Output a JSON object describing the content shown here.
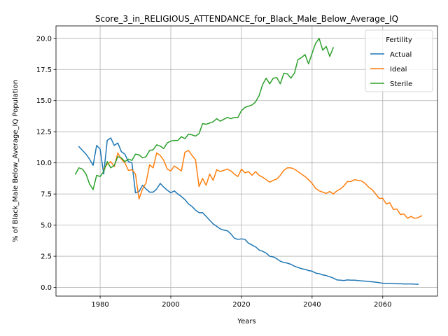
{
  "chart_data": {
    "type": "line",
    "title": "Score_3_in_RELIGIOUS_ATTENDANCE_for_Black_Male_Below_Average_IQ",
    "xlabel": "Years",
    "ylabel": "% of Black_Male Below_Average_IQ Population",
    "xlim": [
      1967.5,
      2075.5
    ],
    "ylim": [
      -0.7,
      21.0
    ],
    "xticks": [
      1980,
      2000,
      2020,
      2040,
      2060
    ],
    "yticks": [
      0.0,
      2.5,
      5.0,
      7.5,
      10.0,
      12.5,
      15.0,
      17.5,
      20.0
    ],
    "xtick_labels": [
      "1980",
      "2000",
      "2020",
      "2040",
      "2060"
    ],
    "ytick_labels": [
      "0.0",
      "2.5",
      "5.0",
      "7.5",
      "10.0",
      "12.5",
      "15.0",
      "17.5",
      "20.0"
    ],
    "grid": true,
    "legend": {
      "title": "Fertility",
      "placement": "top-right"
    },
    "series": [
      {
        "name": "Actual",
        "color": "#1f77b4",
        "points": [
          [
            1974,
            11.3
          ],
          [
            1975,
            11.0
          ],
          [
            1976,
            10.7
          ],
          [
            1977,
            10.3
          ],
          [
            1978,
            9.8
          ],
          [
            1979,
            11.4
          ],
          [
            1980,
            11.1
          ],
          [
            1981,
            9.1
          ],
          [
            1982,
            11.8
          ],
          [
            1983,
            12.0
          ],
          [
            1984,
            11.4
          ],
          [
            1985,
            11.6
          ],
          [
            1986,
            10.9
          ],
          [
            1987,
            10.7
          ],
          [
            1988,
            10.1
          ],
          [
            1989,
            10.0
          ],
          [
            1990,
            7.6
          ],
          [
            1991,
            7.7
          ],
          [
            1992,
            8.2
          ],
          [
            1993,
            7.9
          ],
          [
            1994,
            7.65
          ],
          [
            1995,
            7.65
          ],
          [
            1996,
            7.9
          ],
          [
            1997,
            8.35
          ],
          [
            1998,
            8.05
          ],
          [
            1999,
            7.8
          ],
          [
            2000,
            7.6
          ],
          [
            2001,
            7.75
          ],
          [
            2002,
            7.5
          ],
          [
            2003,
            7.3
          ],
          [
            2004,
            7.05
          ],
          [
            2005,
            6.7
          ],
          [
            2006,
            6.5
          ],
          [
            2007,
            6.2
          ],
          [
            2008,
            6.0
          ],
          [
            2009,
            6.0
          ],
          [
            2010,
            5.7
          ],
          [
            2011,
            5.4
          ],
          [
            2012,
            5.1
          ],
          [
            2013,
            4.9
          ],
          [
            2014,
            4.7
          ],
          [
            2015,
            4.6
          ],
          [
            2016,
            4.55
          ],
          [
            2017,
            4.3
          ],
          [
            2018,
            3.95
          ],
          [
            2019,
            3.85
          ],
          [
            2020,
            3.9
          ],
          [
            2021,
            3.85
          ],
          [
            2022,
            3.55
          ],
          [
            2023,
            3.4
          ],
          [
            2024,
            3.25
          ],
          [
            2025,
            3.0
          ],
          [
            2026,
            2.9
          ],
          [
            2027,
            2.75
          ],
          [
            2028,
            2.5
          ],
          [
            2029,
            2.45
          ],
          [
            2030,
            2.3
          ],
          [
            2031,
            2.1
          ],
          [
            2032,
            2.0
          ],
          [
            2033,
            1.95
          ],
          [
            2034,
            1.85
          ],
          [
            2035,
            1.7
          ],
          [
            2036,
            1.6
          ],
          [
            2037,
            1.5
          ],
          [
            2038,
            1.45
          ],
          [
            2039,
            1.35
          ],
          [
            2040,
            1.3
          ],
          [
            2041,
            1.15
          ],
          [
            2042,
            1.1
          ],
          [
            2043,
            1.0
          ],
          [
            2044,
            0.95
          ],
          [
            2045,
            0.85
          ],
          [
            2046,
            0.75
          ],
          [
            2047,
            0.6
          ],
          [
            2048,
            0.58
          ],
          [
            2049,
            0.55
          ],
          [
            2050,
            0.6
          ],
          [
            2051,
            0.58
          ],
          [
            2052,
            0.58
          ],
          [
            2053,
            0.55
          ],
          [
            2054,
            0.52
          ],
          [
            2055,
            0.5
          ],
          [
            2056,
            0.47
          ],
          [
            2057,
            0.45
          ],
          [
            2058,
            0.42
          ],
          [
            2059,
            0.38
          ],
          [
            2060,
            0.33
          ],
          [
            2061,
            0.32
          ],
          [
            2062,
            0.31
          ],
          [
            2063,
            0.3
          ],
          [
            2064,
            0.29
          ],
          [
            2065,
            0.29
          ],
          [
            2066,
            0.28
          ],
          [
            2067,
            0.28
          ],
          [
            2068,
            0.28
          ],
          [
            2069,
            0.26
          ],
          [
            2070,
            0.25
          ]
        ]
      },
      {
        "name": "Ideal",
        "color": "#ff7f0e",
        "points": [
          [
            1981,
            9.5
          ],
          [
            1982,
            9.9
          ],
          [
            1983,
            10.1
          ],
          [
            1984,
            9.7
          ],
          [
            1985,
            10.8
          ],
          [
            1986,
            10.3
          ],
          [
            1987,
            10.0
          ],
          [
            1988,
            9.4
          ],
          [
            1989,
            9.45
          ],
          [
            1990,
            9.1
          ],
          [
            1991,
            7.1
          ],
          [
            1992,
            7.9
          ],
          [
            1993,
            8.4
          ],
          [
            1994,
            9.85
          ],
          [
            1995,
            9.6
          ],
          [
            1996,
            10.8
          ],
          [
            1997,
            10.6
          ],
          [
            1998,
            10.2
          ],
          [
            1999,
            9.5
          ],
          [
            2000,
            9.35
          ],
          [
            2001,
            9.75
          ],
          [
            2002,
            9.55
          ],
          [
            2003,
            9.35
          ],
          [
            2004,
            10.85
          ],
          [
            2005,
            11.0
          ],
          [
            2006,
            10.6
          ],
          [
            2007,
            10.25
          ],
          [
            2008,
            8.1
          ],
          [
            2009,
            8.75
          ],
          [
            2010,
            8.2
          ],
          [
            2011,
            9.1
          ],
          [
            2012,
            8.6
          ],
          [
            2013,
            9.45
          ],
          [
            2014,
            9.3
          ],
          [
            2015,
            9.4
          ],
          [
            2016,
            9.5
          ],
          [
            2017,
            9.35
          ],
          [
            2018,
            9.1
          ],
          [
            2019,
            8.9
          ],
          [
            2020,
            9.5
          ],
          [
            2021,
            9.2
          ],
          [
            2022,
            9.3
          ],
          [
            2023,
            9.0
          ],
          [
            2024,
            9.3
          ],
          [
            2025,
            9.0
          ],
          [
            2026,
            8.85
          ],
          [
            2027,
            8.65
          ],
          [
            2028,
            8.45
          ],
          [
            2029,
            8.6
          ],
          [
            2030,
            8.7
          ],
          [
            2031,
            9.0
          ],
          [
            2032,
            9.4
          ],
          [
            2033,
            9.6
          ],
          [
            2034,
            9.6
          ],
          [
            2035,
            9.5
          ],
          [
            2036,
            9.3
          ],
          [
            2037,
            9.1
          ],
          [
            2038,
            8.9
          ],
          [
            2039,
            8.65
          ],
          [
            2040,
            8.35
          ],
          [
            2041,
            7.95
          ],
          [
            2042,
            7.75
          ],
          [
            2043,
            7.65
          ],
          [
            2044,
            7.55
          ],
          [
            2045,
            7.7
          ],
          [
            2046,
            7.5
          ],
          [
            2047,
            7.75
          ],
          [
            2048,
            7.9
          ],
          [
            2049,
            8.15
          ],
          [
            2050,
            8.5
          ],
          [
            2051,
            8.5
          ],
          [
            2052,
            8.65
          ],
          [
            2053,
            8.6
          ],
          [
            2054,
            8.55
          ],
          [
            2055,
            8.35
          ],
          [
            2056,
            8.05
          ],
          [
            2057,
            7.85
          ],
          [
            2058,
            7.5
          ],
          [
            2059,
            7.15
          ],
          [
            2060,
            7.15
          ],
          [
            2061,
            6.7
          ],
          [
            2062,
            6.8
          ],
          [
            2063,
            6.25
          ],
          [
            2064,
            6.3
          ],
          [
            2065,
            5.85
          ],
          [
            2066,
            5.9
          ],
          [
            2067,
            5.55
          ],
          [
            2068,
            5.7
          ],
          [
            2069,
            5.55
          ],
          [
            2070,
            5.6
          ],
          [
            2071,
            5.75
          ]
        ]
      },
      {
        "name": "Sterile",
        "color": "#2ca02c",
        "points": [
          [
            1973,
            9.1
          ],
          [
            1974,
            9.6
          ],
          [
            1975,
            9.5
          ],
          [
            1976,
            9.1
          ],
          [
            1977,
            8.3
          ],
          [
            1978,
            7.85
          ],
          [
            1979,
            9.0
          ],
          [
            1980,
            8.9
          ],
          [
            1981,
            9.3
          ],
          [
            1982,
            10.1
          ],
          [
            1983,
            9.6
          ],
          [
            1984,
            9.8
          ],
          [
            1985,
            10.5
          ],
          [
            1986,
            10.4
          ],
          [
            1987,
            10.1
          ],
          [
            1988,
            10.3
          ],
          [
            1989,
            10.2
          ],
          [
            1990,
            10.7
          ],
          [
            1991,
            10.65
          ],
          [
            1992,
            10.4
          ],
          [
            1993,
            10.5
          ],
          [
            1994,
            11.0
          ],
          [
            1995,
            11.05
          ],
          [
            1996,
            11.45
          ],
          [
            1997,
            11.35
          ],
          [
            1998,
            11.15
          ],
          [
            1999,
            11.6
          ],
          [
            2000,
            11.75
          ],
          [
            2001,
            11.8
          ],
          [
            2002,
            11.8
          ],
          [
            2003,
            12.1
          ],
          [
            2004,
            11.95
          ],
          [
            2005,
            12.3
          ],
          [
            2006,
            12.25
          ],
          [
            2007,
            12.15
          ],
          [
            2008,
            12.35
          ],
          [
            2009,
            13.15
          ],
          [
            2010,
            13.1
          ],
          [
            2011,
            13.2
          ],
          [
            2012,
            13.3
          ],
          [
            2013,
            13.55
          ],
          [
            2014,
            13.35
          ],
          [
            2015,
            13.5
          ],
          [
            2016,
            13.65
          ],
          [
            2017,
            13.55
          ],
          [
            2018,
            13.65
          ],
          [
            2019,
            13.65
          ],
          [
            2020,
            14.2
          ],
          [
            2021,
            14.45
          ],
          [
            2022,
            14.55
          ],
          [
            2023,
            14.65
          ],
          [
            2024,
            14.9
          ],
          [
            2025,
            15.4
          ],
          [
            2026,
            16.3
          ],
          [
            2027,
            16.8
          ],
          [
            2028,
            16.35
          ],
          [
            2029,
            16.8
          ],
          [
            2030,
            16.85
          ],
          [
            2031,
            16.35
          ],
          [
            2032,
            17.2
          ],
          [
            2033,
            17.15
          ],
          [
            2034,
            16.8
          ],
          [
            2035,
            17.2
          ],
          [
            2036,
            18.3
          ],
          [
            2037,
            18.45
          ],
          [
            2038,
            18.7
          ],
          [
            2039,
            17.95
          ],
          [
            2040,
            18.8
          ],
          [
            2041,
            19.6
          ],
          [
            2042,
            20.0
          ],
          [
            2043,
            19.05
          ],
          [
            2044,
            19.35
          ],
          [
            2045,
            18.55
          ],
          [
            2046,
            19.25
          ]
        ]
      }
    ]
  }
}
